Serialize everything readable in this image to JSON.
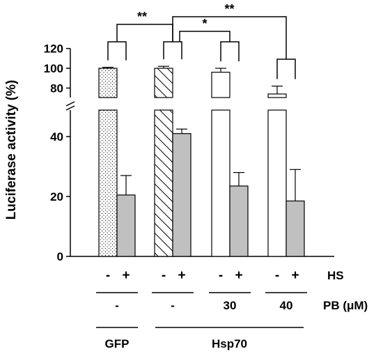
{
  "chart_data": {
    "type": "bar",
    "ylabel": "Luciferase activity (%)",
    "y_axis_break": true,
    "ylim_lower": [
      0,
      45
    ],
    "ylim_upper": [
      65,
      120
    ],
    "yticks_lower": [
      "0",
      "20",
      "40"
    ],
    "yticks_upper": [
      "80",
      "100",
      "120"
    ],
    "groups": [
      {
        "hs": [
          "-",
          "+"
        ],
        "pb": "-",
        "construct": "GFP",
        "values": [
          100,
          20.5
        ],
        "errors": [
          1,
          6.5
        ],
        "fills": [
          "dots",
          "gray"
        ]
      },
      {
        "hs": [
          "-",
          "+"
        ],
        "pb": "-",
        "construct": "Hsp70",
        "values": [
          100,
          41
        ],
        "errors": [
          2,
          1.5
        ],
        "fills": [
          "hatch",
          "gray"
        ]
      },
      {
        "hs": [
          "-",
          "+"
        ],
        "pb": "30",
        "construct": "Hsp70",
        "values": [
          96,
          23.5
        ],
        "errors": [
          4,
          4.5
        ],
        "fills": [
          "white",
          "gray"
        ]
      },
      {
        "hs": [
          "-",
          "+"
        ],
        "pb": "40",
        "construct": "Hsp70",
        "values": [
          74,
          18.5
        ],
        "errors": [
          8,
          10.5
        ],
        "fills": [
          "white",
          "gray"
        ]
      }
    ],
    "row_labels": {
      "hs": "HS",
      "pb": "PB (μM)"
    },
    "constructs": [
      "GFP",
      "Hsp70"
    ],
    "significance": [
      {
        "from": 0,
        "to": 1,
        "label": "**"
      },
      {
        "from": 1,
        "to": 2,
        "label": "*"
      },
      {
        "from": 1,
        "to": 3,
        "label": "**"
      }
    ],
    "colors": {
      "gray_bar": "#c0c0c0",
      "bar_outline": "#000000"
    }
  }
}
